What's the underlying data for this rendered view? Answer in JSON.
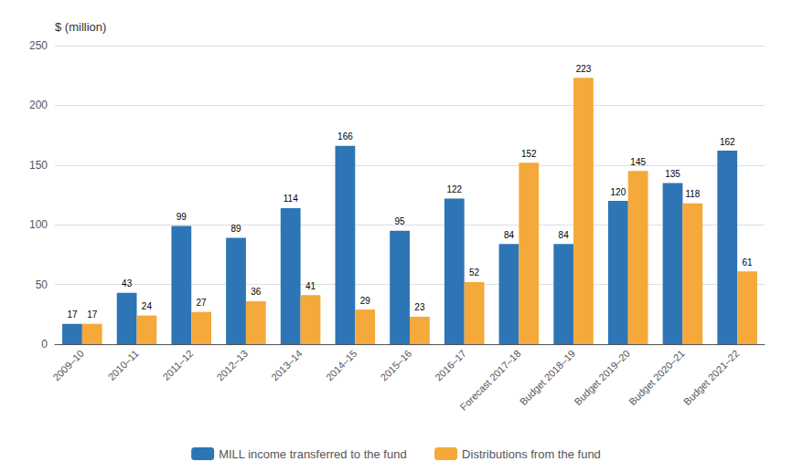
{
  "chart_data": {
    "type": "bar",
    "ylabel": "$ (million)",
    "categories": [
      "2009–10",
      "2010–11",
      "2011–12",
      "2012–13",
      "2013–14",
      "2014–15",
      "2015–16",
      "2016–17",
      "Forecast 2017–18",
      "Budget 2018–19",
      "Budget 2019–20",
      "Budget 2020–21",
      "Budget 2021–22"
    ],
    "series": [
      {
        "name": "MILL income transferred to the fund",
        "color": "#2E75B6",
        "values": [
          17,
          43,
          99,
          89,
          114,
          166,
          95,
          122,
          84,
          84,
          120,
          135,
          162
        ]
      },
      {
        "name": "Distributions from the fund",
        "color": "#F5A93A",
        "values": [
          17,
          24,
          27,
          36,
          41,
          29,
          23,
          52,
          152,
          223,
          145,
          118,
          61
        ]
      }
    ],
    "ylim": [
      0,
      250
    ],
    "yticks": [
      0,
      50,
      100,
      150,
      200,
      250
    ],
    "grid": true,
    "legend": "bottom",
    "data_labels": true
  }
}
